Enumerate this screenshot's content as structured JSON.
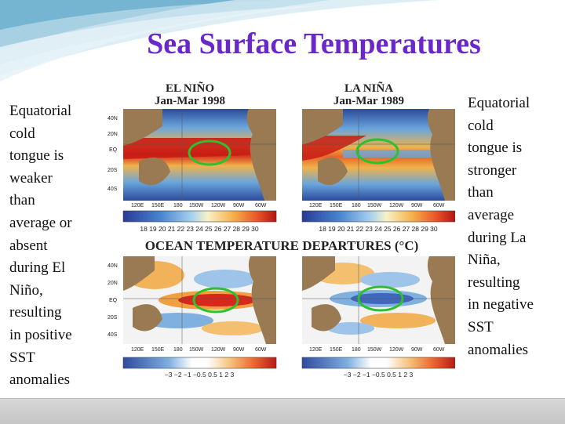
{
  "title": "Sea Surface Temperatures",
  "left_caption": [
    "Equatorial",
    "cold",
    "tongue is",
    "weaker",
    "than",
    "average or",
    "absent",
    "during El",
    "Niño,",
    "resulting",
    "in positive",
    "SST",
    "anomalies"
  ],
  "right_caption": [
    "Equatorial",
    "cold",
    "tongue is",
    "stronger",
    "than",
    "average",
    "during La",
    "Niña,",
    "resulting",
    "in negative",
    "SST",
    "anomalies"
  ],
  "figure": {
    "el_nino_title": "EL NIÑO",
    "el_nino_period": "Jan-Mar 1998",
    "la_nina_title": "LA NIÑA",
    "la_nina_period": "Jan-Mar 1989",
    "lat_labels": [
      "40N",
      "20N",
      "EQ",
      "20S",
      "40S"
    ],
    "lon_labels": [
      "120E",
      "150E",
      "180",
      "150W",
      "120W",
      "90W",
      "60W"
    ],
    "temp_scale_labels": "18 19 20 21 22 23 24 25 26 27 28 29 30",
    "departures_title": "OCEAN TEMPERATURE DEPARTURES (°C)",
    "anomaly_scale_labels": "−3  −2  −1  −0.5 0.5  1   2   3",
    "colors": {
      "highlight_ring": "#2fbf2f",
      "warm": "#d8241c",
      "cool": "#3b64b8"
    }
  }
}
